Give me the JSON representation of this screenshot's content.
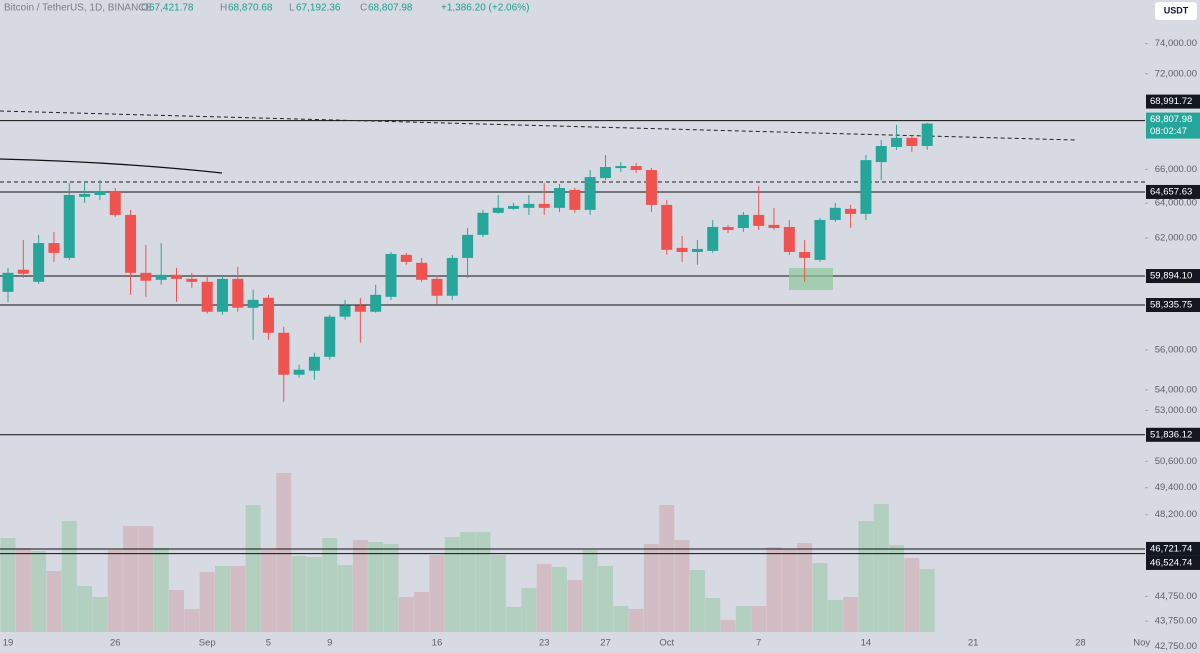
{
  "header": {
    "title": "Bitcoin / TetherUS, 1D, BINANCE",
    "open_label": "O",
    "open": "67,421.78",
    "high_label": "H",
    "high": "68,870.68",
    "low_label": "L",
    "low": "67,192.36",
    "close_label": "C",
    "close": "68,807.98",
    "change": "+1,386.20 (+2.06%)"
  },
  "currency_button": "USDT",
  "chart_data": {
    "type": "candlestick",
    "categories": [
      "19",
      null,
      null,
      null,
      null,
      null,
      null,
      "26",
      null,
      null,
      null,
      null,
      null,
      "Sep",
      null,
      null,
      null,
      "5",
      null,
      null,
      null,
      "9",
      null,
      null,
      null,
      null,
      null,
      null,
      "16",
      null,
      null,
      null,
      null,
      null,
      null,
      "23",
      null,
      null,
      null,
      "27",
      null,
      null,
      null,
      "Oct",
      null,
      null,
      null,
      null,
      null,
      "7",
      null,
      null,
      null,
      null,
      null,
      null,
      "14",
      null,
      null,
      null,
      null,
      null,
      null,
      "21",
      null,
      null,
      null,
      null,
      null,
      null,
      "28",
      null,
      null,
      null,
      "Nov"
    ],
    "open": [
      59040,
      60240,
      59580,
      61720,
      60890,
      64370,
      64480,
      64660,
      63320,
      60070,
      59690,
      59960,
      59740,
      59580,
      57980,
      59740,
      58190,
      58720,
      56880,
      54750,
      54950,
      55650,
      57720,
      58300,
      57980,
      58770,
      61060,
      60620,
      59740,
      58830,
      60890,
      62180,
      63440,
      63670,
      63730,
      63960,
      63730,
      64780,
      63610,
      65480,
      66080,
      66200,
      65960,
      63900,
      61450,
      61220,
      61280,
      62630,
      62570,
      63320,
      62750,
      62630,
      61220,
      60780,
      63030,
      63670,
      63380,
      66440,
      67360,
      67920,
      67421.78,
      null,
      null,
      null,
      null,
      null,
      null,
      null,
      null,
      null,
      null,
      null,
      null,
      null,
      null
    ],
    "high": [
      60340,
      61890,
      62180,
      62350,
      65180,
      65180,
      65360,
      64890,
      63610,
      61610,
      61720,
      60340,
      60070,
      59960,
      59960,
      60400,
      59150,
      58880,
      57200,
      55250,
      55860,
      57820,
      58610,
      58720,
      59420,
      61220,
      61170,
      60890,
      59910,
      61060,
      62570,
      63610,
      64480,
      64020,
      64480,
      65180,
      65130,
      64890,
      65960,
      66870,
      66440,
      66380,
      66080,
      64190,
      62120,
      61890,
      63030,
      62750,
      63490,
      65010,
      63730,
      63030,
      61890,
      63150,
      64020,
      63900,
      66870,
      67790,
      68730,
      68100,
      68870.68,
      null,
      null,
      null,
      null,
      null,
      null,
      null,
      null,
      null,
      null,
      null,
      null,
      null,
      null
    ],
    "low": [
      58500,
      59800,
      59470,
      60670,
      60780,
      64020,
      64190,
      63200,
      58880,
      58770,
      59420,
      58500,
      59260,
      57880,
      57820,
      57980,
      56520,
      56520,
      53420,
      54600,
      54500,
      55500,
      57560,
      56370,
      57930,
      58610,
      60510,
      59580,
      58350,
      58610,
      59800,
      62060,
      63380,
      63610,
      63320,
      63320,
      63490,
      63440,
      63320,
      65360,
      65840,
      65780,
      63490,
      61060,
      60670,
      60510,
      61170,
      62290,
      62350,
      62460,
      62460,
      61060,
      59580,
      60670,
      62920,
      62570,
      63030,
      65360,
      67180,
      67050,
      67192.36,
      null,
      null,
      null,
      null,
      null,
      null,
      null,
      null,
      null,
      null,
      null,
      null,
      null,
      null
    ],
    "close": [
      60070,
      60020,
      61720,
      61170,
      64480,
      64540,
      64660,
      63320,
      60070,
      59640,
      59960,
      59740,
      59580,
      57980,
      59740,
      58190,
      58610,
      56880,
      54750,
      55000,
      55650,
      57720,
      58300,
      57980,
      58880,
      61110,
      60670,
      59690,
      58830,
      60890,
      62180,
      63440,
      63730,
      63840,
      63960,
      63730,
      64890,
      63610,
      65540,
      66140,
      66200,
      65960,
      63900,
      61340,
      61220,
      61390,
      62630,
      62460,
      63320,
      62690,
      62570,
      61220,
      60890,
      63030,
      63730,
      63380,
      66560,
      67420,
      67920,
      67421.78,
      68807.98,
      null,
      null,
      null,
      null,
      null,
      null,
      null,
      null,
      null,
      null,
      null,
      null,
      null,
      null
    ],
    "volume": [
      94,
      84,
      81,
      61,
      111,
      46,
      35,
      82,
      106,
      106,
      84,
      42,
      23,
      60,
      66,
      66,
      127,
      82,
      159,
      76,
      75,
      94,
      67,
      92,
      90,
      88,
      35,
      40,
      77,
      95,
      100,
      100,
      77,
      25,
      44,
      68,
      65,
      52,
      82,
      66,
      26,
      23,
      88,
      127,
      92,
      62,
      34,
      12,
      26,
      26,
      85,
      83,
      89,
      69,
      32,
      35,
      111,
      128,
      87,
      74,
      63,
      null,
      null,
      null,
      null,
      null,
      null,
      null,
      null,
      null,
      null,
      null,
      null,
      null,
      null
    ],
    "up_color": "#26a69a",
    "down_color": "#ef5350",
    "volume_up_color": "#b3cfc0",
    "volume_down_color": "#d3bdc4",
    "ylim": [
      42500,
      77000
    ],
    "log_scale": true,
    "grid": false,
    "yticks": [
      {
        "value": 74000,
        "label": "74,000.00"
      },
      {
        "value": 72000,
        "label": "72,000.00"
      },
      {
        "value": 66000,
        "label": "66,000.00"
      },
      {
        "value": 64000,
        "label": "64,000.00"
      },
      {
        "value": 62000,
        "label": "62,000.00"
      },
      {
        "value": 56000,
        "label": "56,000.00"
      },
      {
        "value": 54000,
        "label": "54,000.00"
      },
      {
        "value": 53000,
        "label": "53,000.00"
      },
      {
        "value": 50600,
        "label": "50,600.00"
      },
      {
        "value": 49400,
        "label": "49,400.00"
      },
      {
        "value": 48200,
        "label": "48,200.00"
      },
      {
        "value": 44750,
        "label": "44,750.00"
      },
      {
        "value": 43750,
        "label": "43,750.00"
      },
      {
        "value": 42750,
        "label": "42,750.00"
      }
    ],
    "levels": [
      {
        "value": 68991.72,
        "label": "68,991.72"
      },
      {
        "value": 64657.63,
        "label": "64,657.63"
      },
      {
        "value": 59894.1,
        "label": "59,894.10"
      },
      {
        "value": 58335.75,
        "label": "58,335.75"
      },
      {
        "value": 51836.12,
        "label": "51,836.12"
      },
      {
        "value": 46721.74,
        "label": "46,721.74"
      },
      {
        "value": 46524.74,
        "label": "46,524.74"
      }
    ],
    "last_price_label": "68,807.98",
    "countdown": "08:02:47"
  }
}
